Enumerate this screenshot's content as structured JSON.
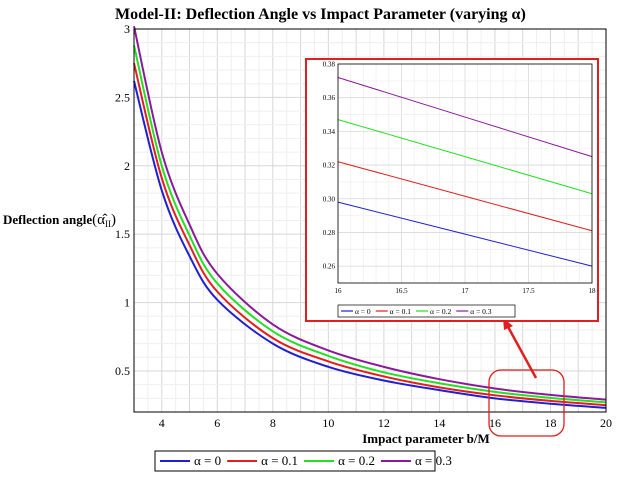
{
  "chart_data": {
    "type": "line",
    "title": "Model-II: Deflection Angle vs Impact Parameter (varying α)",
    "xlabel": "Impact parameter b/M",
    "ylabel": "Deflection angle",
    "ylabel_symbol": "(α̂",
    "ylabel_subscript": "II",
    "ylabel_close": ")",
    "xlim": [
      3,
      20
    ],
    "ylim": [
      0.2,
      3
    ],
    "xticks": [
      "4",
      "6",
      "8",
      "10",
      "12",
      "14",
      "16",
      "18",
      "20"
    ],
    "yticks": [
      "0.5",
      "1",
      "1.5",
      "2",
      "2.5",
      "3"
    ],
    "series": [
      {
        "name": "α = 0",
        "color": "#1f1fd6",
        "x": [
          3,
          4,
          5,
          6,
          8,
          10,
          12,
          14,
          16,
          18,
          20
        ],
        "y": [
          2.62,
          1.82,
          1.34,
          1.02,
          0.7,
          0.53,
          0.43,
          0.36,
          0.3,
          0.26,
          0.23
        ]
      },
      {
        "name": "α = 0.1",
        "color": "#e31e1e",
        "x": [
          3,
          4,
          5,
          6,
          8,
          10,
          12,
          14,
          16,
          18,
          20
        ],
        "y": [
          2.75,
          1.91,
          1.42,
          1.08,
          0.74,
          0.57,
          0.46,
          0.38,
          0.322,
          0.281,
          0.25
        ]
      },
      {
        "name": "α = 0.2",
        "color": "#22e022",
        "x": [
          3,
          4,
          5,
          6,
          8,
          10,
          12,
          14,
          16,
          18,
          20
        ],
        "y": [
          2.88,
          2.0,
          1.49,
          1.14,
          0.79,
          0.61,
          0.49,
          0.41,
          0.347,
          0.303,
          0.27
        ]
      },
      {
        "name": "α = 0.3",
        "color": "#8a1a9a",
        "x": [
          3,
          4,
          5,
          6,
          8,
          10,
          12,
          14,
          16,
          18,
          20
        ],
        "y": [
          3.02,
          2.1,
          1.57,
          1.21,
          0.84,
          0.65,
          0.53,
          0.44,
          0.372,
          0.325,
          0.29
        ]
      }
    ],
    "inset": {
      "xlim": [
        16,
        18
      ],
      "ylim": [
        0.25,
        0.38
      ],
      "xticks": [
        "16",
        "16.5",
        "17",
        "17.5",
        "18"
      ],
      "yticks": [
        "0.26",
        "0.28",
        "0.30",
        "0.32",
        "0.34",
        "0.36",
        "0.38"
      ],
      "series": [
        {
          "name": "α = 0",
          "x": [
            16,
            18
          ],
          "y": [
            0.298,
            0.26
          ]
        },
        {
          "name": "α = 0.1",
          "x": [
            16,
            18
          ],
          "y": [
            0.322,
            0.281
          ]
        },
        {
          "name": "α = 0.2",
          "x": [
            16,
            18
          ],
          "y": [
            0.347,
            0.303
          ]
        },
        {
          "name": "α = 0.3",
          "x": [
            16,
            18
          ],
          "y": [
            0.372,
            0.325
          ]
        }
      ]
    },
    "zoom_color": "#e31e1e"
  }
}
